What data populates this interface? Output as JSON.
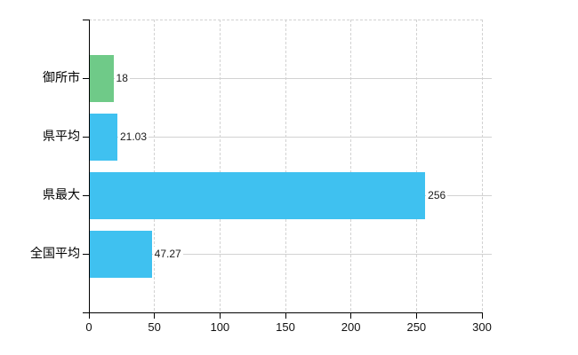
{
  "chart_data": {
    "type": "bar",
    "orientation": "horizontal",
    "title": "",
    "xlabel": "",
    "ylabel": "",
    "categories": [
      "御所市",
      "県平均",
      "県最大",
      "全国平均"
    ],
    "values": [
      18,
      21.03,
      256,
      47.27
    ],
    "value_labels": [
      "18",
      "21.03",
      "256",
      "47.27"
    ],
    "bar_colors": [
      "#6fca88",
      "#3fc1f0",
      "#3fc1f0",
      "#3fc1f0"
    ],
    "xlim": [
      0,
      300
    ],
    "xticks": [
      0,
      50,
      100,
      150,
      200,
      250,
      300
    ],
    "xtick_labels": [
      "0",
      "50",
      "100",
      "150",
      "200",
      "250",
      "300"
    ],
    "grid": "on",
    "legend": "none",
    "colors": {
      "bar_default": "#3fc1f0",
      "bar_highlight": "#6fca88",
      "grid_line": "#d2d2d2",
      "axis_line": "#000000",
      "text": "#000000",
      "background": "#ffffff"
    }
  }
}
